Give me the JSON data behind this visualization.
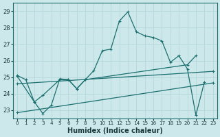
{
  "xlabel": "Humidex (Indice chaleur)",
  "xlim": [
    -0.5,
    23.5
  ],
  "ylim": [
    22.5,
    29.5
  ],
  "xticks": [
    0,
    1,
    2,
    3,
    4,
    5,
    6,
    7,
    8,
    9,
    10,
    11,
    12,
    13,
    14,
    15,
    16,
    17,
    18,
    19,
    20,
    21,
    22,
    23
  ],
  "yticks": [
    23,
    24,
    25,
    26,
    27,
    28,
    29
  ],
  "bg_color": "#cde8ea",
  "grid_color": "#b0d4d8",
  "line_color": "#1a6e6e",
  "line1_x": [
    0,
    1,
    2,
    3,
    4,
    5,
    6,
    7,
    8,
    9,
    10,
    11,
    12,
    13,
    14,
    15,
    16,
    17,
    18,
    19,
    20,
    21,
    22
  ],
  "line1_y": [
    25.1,
    24.85,
    23.5,
    22.8,
    23.3,
    24.9,
    24.85,
    24.3,
    24.85,
    25.4,
    26.6,
    26.7,
    28.4,
    28.95,
    27.75,
    27.5,
    27.4,
    27.2,
    25.9,
    26.3,
    25.5,
    22.7,
    24.7
  ],
  "line2_x": [
    0,
    2,
    3,
    5,
    6,
    7,
    8,
    20,
    21
  ],
  "line2_y": [
    25.05,
    23.5,
    23.9,
    24.85,
    24.85,
    24.3,
    24.85,
    25.75,
    26.3
  ],
  "line3_x": [
    0,
    23
  ],
  "line3_y": [
    24.6,
    25.35
  ],
  "line4_x": [
    0,
    23
  ],
  "line4_y": [
    22.85,
    24.65
  ]
}
